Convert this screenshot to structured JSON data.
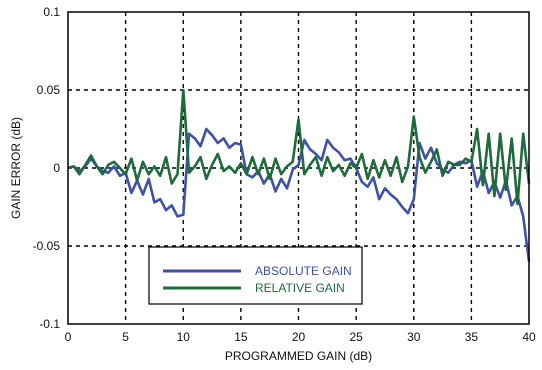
{
  "chart_data": {
    "type": "line",
    "title": "",
    "xlabel": "PROGRAMMED GAIN (dB)",
    "ylabel": "GAIN ERROR (dB)",
    "xlim": [
      0,
      40
    ],
    "ylim": [
      -0.1,
      0.1
    ],
    "x_ticks": [
      0,
      5,
      10,
      15,
      20,
      25,
      30,
      35,
      40
    ],
    "x_tick_labels": [
      "0",
      "5",
      "10",
      "15",
      "20",
      "25",
      "30",
      "35",
      "40"
    ],
    "y_ticks": [
      -0.1,
      -0.05,
      0,
      0.05,
      0.1
    ],
    "y_tick_labels": [
      "-0.1",
      "-0.05",
      "0",
      "0.05",
      "0.1"
    ],
    "grid": true,
    "grid_style": "dashed",
    "legend_position": "lower-center",
    "series": [
      {
        "name": "ABSOLUTE GAIN",
        "color": "#3f51a8",
        "x": [
          0,
          0.5,
          1,
          1.5,
          2,
          2.5,
          3,
          3.5,
          4,
          4.5,
          5,
          5.5,
          6,
          6.5,
          7,
          7.5,
          8,
          8.5,
          9,
          9.5,
          10,
          10.5,
          11,
          11.5,
          12,
          12.5,
          13,
          13.5,
          14,
          14.5,
          15,
          15.5,
          16,
          16.5,
          17,
          17.5,
          18,
          18.5,
          19,
          19.5,
          20,
          20.5,
          21,
          21.5,
          22,
          22.5,
          23,
          23.5,
          24,
          24.5,
          25,
          25.5,
          26,
          26.5,
          27,
          27.5,
          28,
          28.5,
          29,
          29.5,
          30,
          30.5,
          31,
          31.5,
          32,
          32.5,
          33,
          33.5,
          34,
          34.5,
          35,
          35.5,
          36,
          36.5,
          37,
          37.5,
          38,
          38.5,
          39,
          39.5,
          40
        ],
        "y": [
          0,
          0.001,
          -0.002,
          0.001,
          0.006,
          0.001,
          -0.002,
          -0.003,
          0.001,
          -0.005,
          -0.003,
          -0.016,
          -0.008,
          -0.017,
          -0.007,
          -0.022,
          -0.02,
          -0.027,
          -0.024,
          -0.031,
          -0.03,
          0.022,
          0.019,
          0.014,
          0.025,
          0.021,
          0.016,
          0.019,
          0.013,
          0.016,
          0.015,
          -0.004,
          -0.006,
          -0.002,
          -0.01,
          -0.004,
          -0.015,
          -0.007,
          -0.013,
          -0.001,
          0.002,
          0.018,
          0.012,
          0.009,
          0.005,
          0.018,
          0.013,
          0.01,
          0.005,
          0.006,
          0,
          -0.009,
          -0.012,
          -0.006,
          -0.02,
          -0.013,
          -0.017,
          -0.02,
          -0.025,
          -0.029,
          -0.02,
          0.016,
          0.006,
          0.013,
          0.003,
          -0.001,
          -0.003,
          0.002,
          0.004,
          0.003,
          0.005,
          -0.012,
          -0.002,
          -0.016,
          -0.009,
          -0.019,
          -0.008,
          -0.024,
          -0.018,
          -0.031,
          -0.06
        ]
      },
      {
        "name": "RELATIVE GAIN",
        "color": "#1e6b3c",
        "x": [
          0,
          0.5,
          1,
          1.5,
          2,
          2.5,
          3,
          3.5,
          4,
          4.5,
          5,
          5.5,
          6,
          6.5,
          7,
          7.5,
          8,
          8.5,
          9,
          9.5,
          10,
          10.5,
          11,
          11.5,
          12,
          12.5,
          13,
          13.5,
          14,
          14.5,
          15,
          15.5,
          16,
          16.5,
          17,
          17.5,
          18,
          18.5,
          19,
          19.5,
          20,
          20.5,
          21,
          21.5,
          22,
          22.5,
          23,
          23.5,
          24,
          24.5,
          25,
          25.5,
          26,
          26.5,
          27,
          27.5,
          28,
          28.5,
          29,
          29.5,
          30,
          30.5,
          31,
          31.5,
          32,
          32.5,
          33,
          33.5,
          34,
          34.5,
          35,
          35.5,
          36,
          36.5,
          37,
          37.5,
          38,
          38.5,
          39,
          39.5,
          40
        ],
        "y": [
          0,
          0.001,
          -0.004,
          0.002,
          0.008,
          0.001,
          -0.004,
          0.002,
          0.004,
          0,
          -0.004,
          0.006,
          -0.008,
          0.004,
          -0.004,
          0.001,
          -0.005,
          0.007,
          -0.01,
          -0.004,
          0.05,
          -0.003,
          0.001,
          0.007,
          -0.007,
          0.002,
          0.009,
          -0.002,
          0.001,
          -0.003,
          0.003,
          -0.004,
          0.007,
          -0.004,
          0.006,
          -0.007,
          0.006,
          -0.004,
          0.001,
          0.004,
          0.031,
          -0.004,
          0.002,
          0.007,
          -0.005,
          0.007,
          -0.002,
          0.002,
          -0.005,
          0.003,
          0,
          0.009,
          -0.007,
          0.005,
          -0.006,
          0.005,
          -0.005,
          0.007,
          -0.009,
          0.001,
          0.033,
          0.007,
          -0.003,
          0.004,
          0.012,
          -0.005,
          0.004,
          0.002,
          0.002,
          0.006,
          0.004,
          0.025,
          -0.011,
          0.022,
          -0.018,
          0.022,
          -0.014,
          0.019,
          -0.023,
          0.022,
          -0.01
        ]
      }
    ]
  }
}
